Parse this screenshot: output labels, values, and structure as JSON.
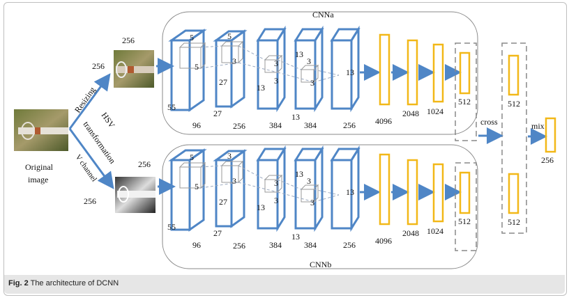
{
  "caption": {
    "fig": "Fig. 2",
    "text": "The architecture of DCNN"
  },
  "labels": {
    "cnn_a": "CNNa",
    "cnn_b": "CNNb",
    "original": "Original",
    "image": "image",
    "resizing": "Resizing",
    "hsv1": "HSV",
    "hsv2": "transformation",
    "hsv3": "V channel",
    "size256": "256",
    "cross": "cross",
    "mix": "mix"
  },
  "cnn_a": {
    "c1": {
      "k": "5",
      "k2": "5",
      "w": "55",
      "d": "96"
    },
    "c2": {
      "k": "5",
      "k2": "3",
      "h": "27",
      "w": "27",
      "d": "256"
    },
    "c3": {
      "k": "3",
      "k2": "3",
      "w": "13",
      "d": "384"
    },
    "c4": {
      "k": "13",
      "k2": "3",
      "k3": "3",
      "w": "13",
      "d": "384"
    },
    "c5": {
      "h": "13",
      "d": "256"
    },
    "fc": [
      "4096",
      "2048",
      "1024",
      "512"
    ]
  },
  "cnn_b": {
    "c1": {
      "k": "5",
      "k2": "5",
      "w": "55",
      "d": "96"
    },
    "c2": {
      "k": "3",
      "k2": "3",
      "h": "27",
      "w": "27",
      "d": "256"
    },
    "c3": {
      "k": "3",
      "k2": "3",
      "w": "13",
      "d": "384"
    },
    "c4": {
      "k": "13",
      "k2": "3",
      "k3": "3",
      "w": "13",
      "d": "384"
    },
    "c5": {
      "h": "13",
      "d": "256"
    },
    "fc": [
      "4096",
      "2048",
      "1024",
      "512"
    ]
  },
  "cross_fc": [
    "512",
    "512"
  ],
  "mix_fc": "256",
  "colors": {
    "box": "#4f86c6",
    "fc": "#f2b818",
    "arrow": "#4f86c6",
    "dash": "#888888"
  }
}
